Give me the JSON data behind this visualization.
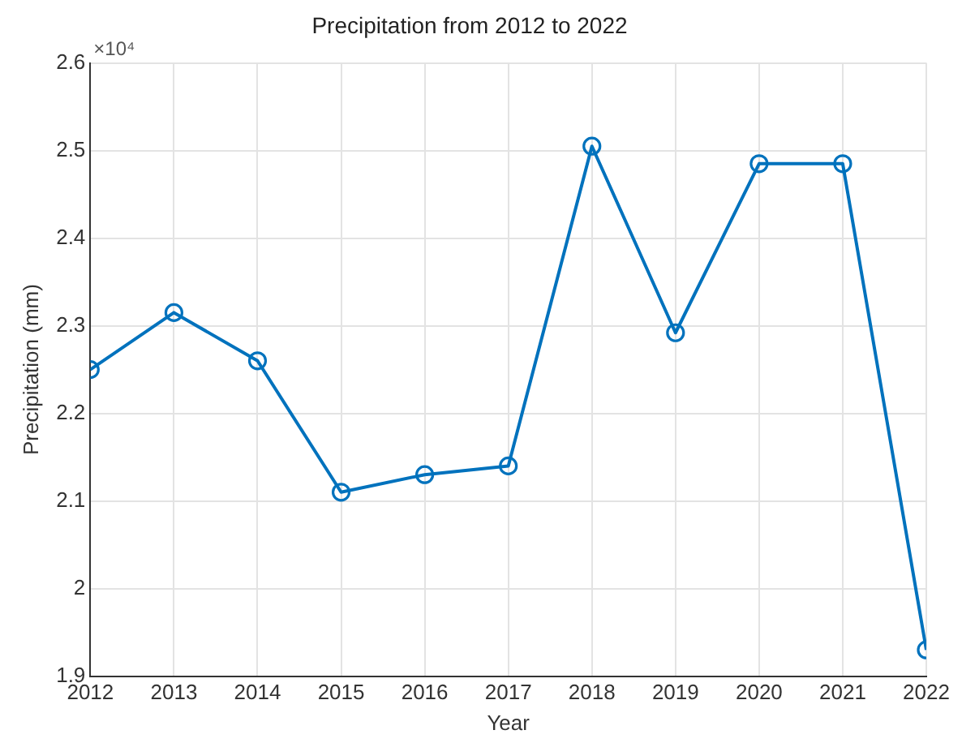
{
  "chart_data": {
    "type": "line",
    "title": "Precipitation from 2012 to 2022",
    "xlabel": "Year",
    "ylabel": "Precipitation (mm)",
    "x": [
      2012,
      2013,
      2014,
      2015,
      2016,
      2017,
      2018,
      2019,
      2020,
      2021,
      2022
    ],
    "series": [
      {
        "color": "#0072bd",
        "values": [
          2.25,
          2.315,
          2.26,
          2.11,
          2.13,
          2.14,
          2.505,
          2.292,
          2.485,
          2.485,
          1.93
        ]
      }
    ],
    "xlim": [
      2012,
      2022
    ],
    "xticks": [
      2012,
      2013,
      2014,
      2015,
      2016,
      2017,
      2018,
      2019,
      2020,
      2021,
      2022
    ],
    "ylim": [
      1.9,
      2.6
    ],
    "yticks": [
      1.9,
      2,
      2.1,
      2.2,
      2.3,
      2.4,
      2.5,
      2.6
    ],
    "annotations": [
      "×10⁴"
    ],
    "grid": true,
    "legend": false,
    "marker": "circle",
    "line_style": "solid"
  }
}
